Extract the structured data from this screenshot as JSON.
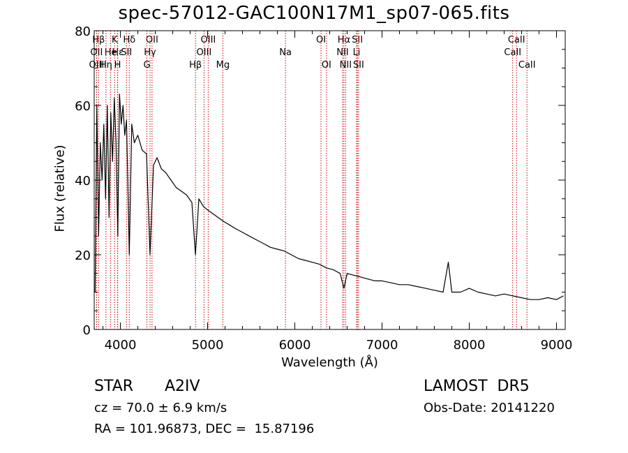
{
  "chart_data": {
    "type": "line",
    "title": "spec-57012-GAC100N17M1_sp07-065.fits",
    "xlabel": "Wavelength (Å)",
    "ylabel": "Flux (relative)",
    "xlim": [
      3700,
      9100
    ],
    "ylim": [
      0,
      80
    ],
    "x_ticks": [
      4000,
      5000,
      6000,
      7000,
      8000,
      9000
    ],
    "y_ticks": [
      0,
      20,
      40,
      60,
      80
    ],
    "grid": false,
    "series": [
      {
        "color": "#000000",
        "x": [
          3710,
          3730,
          3750,
          3770,
          3790,
          3810,
          3830,
          3850,
          3870,
          3890,
          3910,
          3930,
          3950,
          3970,
          3990,
          4010,
          4030,
          4050,
          4070,
          4102,
          4130,
          4160,
          4200,
          4250,
          4300,
          4340,
          4380,
          4420,
          4470,
          4520,
          4580,
          4640,
          4700,
          4760,
          4820,
          4861,
          4900,
          4950,
          5000,
          5060,
          5120,
          5180,
          5250,
          5320,
          5400,
          5480,
          5560,
          5640,
          5720,
          5800,
          5880,
          5960,
          6040,
          6120,
          6200,
          6280,
          6360,
          6440,
          6520,
          6563,
          6600,
          6680,
          6760,
          6840,
          6920,
          7000,
          7100,
          7200,
          7300,
          7400,
          7500,
          7600,
          7700,
          7760,
          7800,
          7900,
          8000,
          8100,
          8200,
          8300,
          8400,
          8500,
          8600,
          8700,
          8800,
          8900,
          9000,
          9080
        ],
        "y": [
          10,
          60,
          25,
          50,
          40,
          55,
          35,
          60,
          30,
          58,
          45,
          62,
          50,
          25,
          63,
          55,
          60,
          52,
          56,
          20,
          55,
          50,
          52,
          48,
          47,
          20,
          44,
          46,
          43,
          42,
          40,
          38,
          37,
          36,
          34,
          20,
          35,
          33,
          32,
          31,
          30,
          29,
          28,
          27,
          26,
          25,
          24,
          23,
          22,
          21.5,
          21,
          20,
          19,
          18.5,
          18,
          17.5,
          16.5,
          16,
          15,
          11,
          15,
          14.5,
          14,
          13.5,
          13,
          13,
          12.5,
          12,
          12,
          11.5,
          11,
          10.5,
          10,
          18,
          10,
          10,
          11,
          10,
          9.5,
          9,
          9.5,
          9,
          8.5,
          8,
          8,
          8.5,
          8,
          9
        ]
      }
    ],
    "line_labels": [
      {
        "text": "Hβ",
        "x": 3750,
        "row": 0
      },
      {
        "text": "K",
        "x": 3934,
        "row": 0
      },
      {
        "text": "Hδ",
        "x": 4102,
        "row": 0
      },
      {
        "text": "OII",
        "x": 4363,
        "row": 0
      },
      {
        "text": "OIII",
        "x": 5007,
        "row": 0
      },
      {
        "text": "OI",
        "x": 6300,
        "row": 0
      },
      {
        "text": "Hα",
        "x": 6563,
        "row": 0
      },
      {
        "text": "SII",
        "x": 6717,
        "row": 0
      },
      {
        "text": "CaII",
        "x": 8542,
        "row": 0
      },
      {
        "text": "OII",
        "x": 3727,
        "row": 1
      },
      {
        "text": "He",
        "x": 3889,
        "row": 1
      },
      {
        "text": "Hε",
        "x": 3970,
        "row": 1
      },
      {
        "text": "SII",
        "x": 4070,
        "row": 1
      },
      {
        "text": "Hγ",
        "x": 4340,
        "row": 1
      },
      {
        "text": "OIII",
        "x": 4959,
        "row": 1
      },
      {
        "text": "Na",
        "x": 5893,
        "row": 1
      },
      {
        "text": "NII",
        "x": 6548,
        "row": 1
      },
      {
        "text": "Li",
        "x": 6708,
        "row": 1
      },
      {
        "text": "CaII",
        "x": 8498,
        "row": 1
      },
      {
        "text": "OIII",
        "x": 3727,
        "row": 2
      },
      {
        "text": "Hη",
        "x": 3835,
        "row": 2
      },
      {
        "text": "H",
        "x": 3968,
        "row": 2
      },
      {
        "text": "G",
        "x": 4304,
        "row": 2
      },
      {
        "text": "Hβ",
        "x": 4861,
        "row": 2
      },
      {
        "text": "Mg",
        "x": 5175,
        "row": 2
      },
      {
        "text": "OI",
        "x": 6363,
        "row": 2
      },
      {
        "text": "NII",
        "x": 6583,
        "row": 2
      },
      {
        "text": "SII",
        "x": 6731,
        "row": 2
      },
      {
        "text": "CaII",
        "x": 8662,
        "row": 2
      }
    ],
    "line_marker_color": "#cc0000"
  },
  "info": {
    "class_label": "STAR",
    "subclass": "A2IV",
    "survey": "LAMOST  DR5",
    "redshift": "cz = 70.0 ± 6.9 km/s",
    "obs_date": "Obs-Date: 20141220",
    "coords": "RA = 101.96873, DEC =  15.87196"
  }
}
